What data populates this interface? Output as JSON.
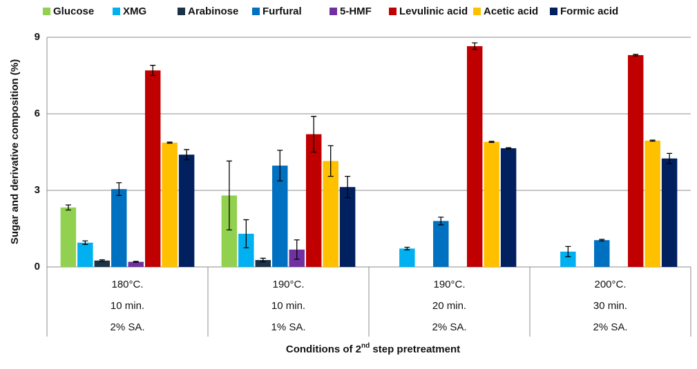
{
  "chart_data": {
    "type": "bar",
    "ylabel": "Sugar and derivative composition (%)",
    "xlabel_parts": [
      "Conditions of 2",
      "nd",
      " step pretreatment"
    ],
    "categories": [
      [
        "180°C.",
        "10 min.",
        "2% SA."
      ],
      [
        "190°C.",
        "10 min.",
        "1% SA."
      ],
      [
        "190°C.",
        "20 min.",
        "2% SA."
      ],
      [
        "200°C.",
        "30 min.",
        "2% SA."
      ]
    ],
    "ylim": [
      0,
      9
    ],
    "yticks": [
      0,
      3,
      6,
      9
    ],
    "grid": true,
    "legend": "top",
    "series": [
      {
        "name": "Glucose",
        "color": "#92d050",
        "values": [
          2.33,
          2.8,
          null,
          null
        ],
        "errors": [
          0.1,
          1.35,
          null,
          null
        ]
      },
      {
        "name": "XMG",
        "color": "#00b0f0",
        "values": [
          0.95,
          1.3,
          0.72,
          0.6
        ],
        "errors": [
          0.07,
          0.55,
          0.05,
          0.2
        ]
      },
      {
        "name": "Arabinose",
        "color": "#1c3347",
        "values": [
          0.25,
          0.27,
          null,
          null
        ],
        "errors": [
          0.03,
          0.07,
          null,
          null
        ]
      },
      {
        "name": "Furfural",
        "color": "#0070c0",
        "values": [
          3.05,
          3.97,
          1.8,
          1.05
        ],
        "errors": [
          0.25,
          0.6,
          0.15,
          0.03
        ]
      },
      {
        "name": "5-HMF",
        "color": "#7030a0",
        "values": [
          0.2,
          0.68,
          null,
          null
        ],
        "errors": [
          0.02,
          0.38,
          null,
          null
        ]
      },
      {
        "name": "Levulinic acid",
        "color": "#c00000",
        "values": [
          7.7,
          5.2,
          8.65,
          8.3
        ],
        "errors": [
          0.2,
          0.7,
          0.13,
          0.03
        ]
      },
      {
        "name": "Acetic acid",
        "color": "#ffc000",
        "values": [
          4.87,
          4.15,
          4.9,
          4.95
        ],
        "errors": [
          0.02,
          0.6,
          0.02,
          0.02
        ]
      },
      {
        "name": "Formic acid",
        "color": "#002060",
        "values": [
          4.4,
          3.13,
          4.65,
          4.25
        ],
        "errors": [
          0.2,
          0.42,
          0.02,
          0.2
        ]
      }
    ]
  }
}
